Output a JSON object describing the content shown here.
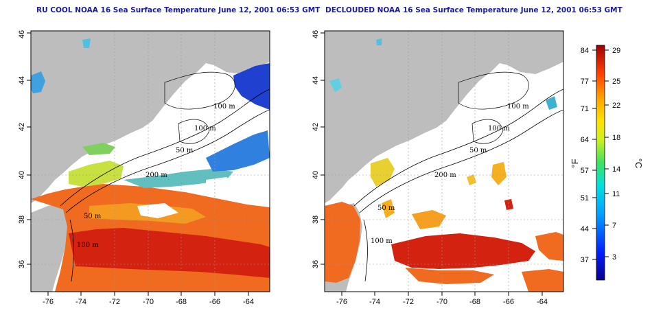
{
  "left_title": "RU COOL NOAA 16 Sea Surface Temperature June 12, 2001 06:53 GMT",
  "right_title": "DECLOUDED NOAA 16 Sea Surface Temperature June 12, 2001 06:53 GMT",
  "x_ticks": [
    "-76",
    "-74",
    "-72",
    "-70",
    "-68",
    "-66",
    "-64"
  ],
  "y_ticks": [
    "36",
    "38",
    "40",
    "42",
    "44",
    "46"
  ],
  "contours": {
    "left": [
      "100 m",
      "100 m",
      "50 m",
      "200 m",
      "50 m",
      "100 m"
    ],
    "right": [
      "100 m",
      "100 m",
      "50 m",
      "200 m",
      "50 m",
      "100 m"
    ]
  },
  "colorbar": {
    "f_label": "°F",
    "c_label": "°C",
    "f_ticks": [
      "84",
      "77",
      "71",
      "64",
      "57",
      "51",
      "44",
      "37"
    ],
    "c_ticks": [
      "29",
      "25",
      "22",
      "18",
      "14",
      "11",
      "7",
      "3"
    ]
  },
  "colors": {
    "land": "#bdbdbd",
    "title": "#1a1aa0",
    "warm": "#e83010",
    "hot": "#c81010",
    "mid": "#f5a020",
    "cool": "#30a0e0",
    "cold": "#1020c0"
  }
}
